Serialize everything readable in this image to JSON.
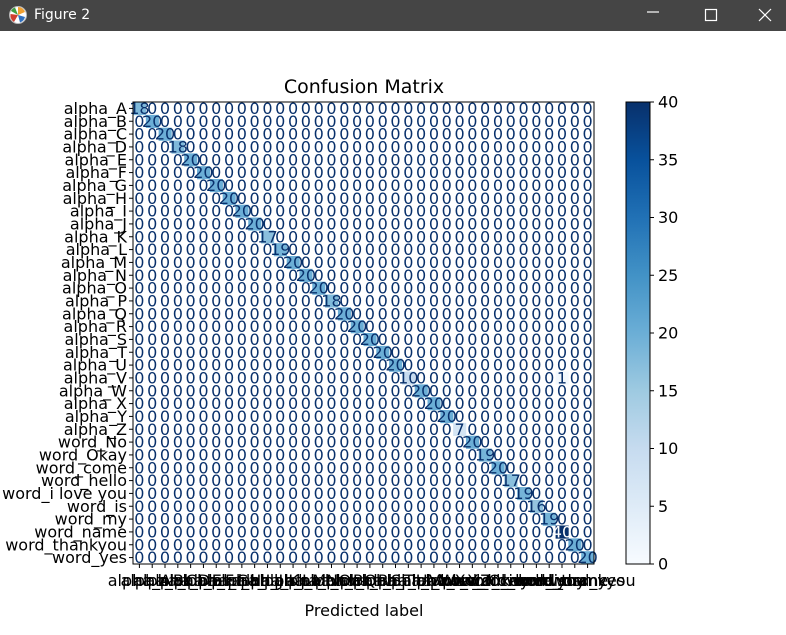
{
  "window": {
    "title": "Figure 2",
    "icons": {
      "app": "matplotlib-figure-icon",
      "minimize": "minimize-icon",
      "maximize": "maximize-icon",
      "close": "close-icon"
    }
  },
  "chart_data": {
    "type": "heatmap",
    "title": "Confusion Matrix",
    "xlabel": "Predicted label",
    "ylabel": "",
    "colormap": "Blues",
    "colorbar": {
      "min": 0,
      "max": 40,
      "ticks": [
        0,
        5,
        10,
        15,
        20,
        25,
        30,
        35,
        40
      ]
    },
    "labels": [
      "alpha_A",
      "alpha_B",
      "alpha_C",
      "alpha_D",
      "alpha_E",
      "alpha_F",
      "alpha_G",
      "alpha_H",
      "alpha_I",
      "alpha_J",
      "alpha_K",
      "alpha_L",
      "alpha_M",
      "alpha_N",
      "alpha_O",
      "alpha_P",
      "alpha_Q",
      "alpha_R",
      "alpha_S",
      "alpha_T",
      "alpha_U",
      "alpha_V",
      "alpha_W",
      "alpha_X",
      "alpha_Y",
      "alpha_Z",
      "word_No",
      "word_Okay",
      "word_come",
      "word_hello",
      "word_i love you",
      "word_is",
      "word_my",
      "word_name",
      "word_thankyou",
      "word_yes"
    ],
    "diagonal": [
      18,
      20,
      20,
      18,
      20,
      20,
      20,
      20,
      20,
      20,
      17,
      19,
      20,
      20,
      20,
      18,
      20,
      20,
      20,
      20,
      20,
      10,
      20,
      20,
      20,
      7,
      20,
      19,
      20,
      17,
      19,
      16,
      19,
      40,
      20,
      20
    ],
    "off_diagonal": [
      {
        "row": 21,
        "col": 33,
        "value": 1
      }
    ],
    "grid": false
  }
}
